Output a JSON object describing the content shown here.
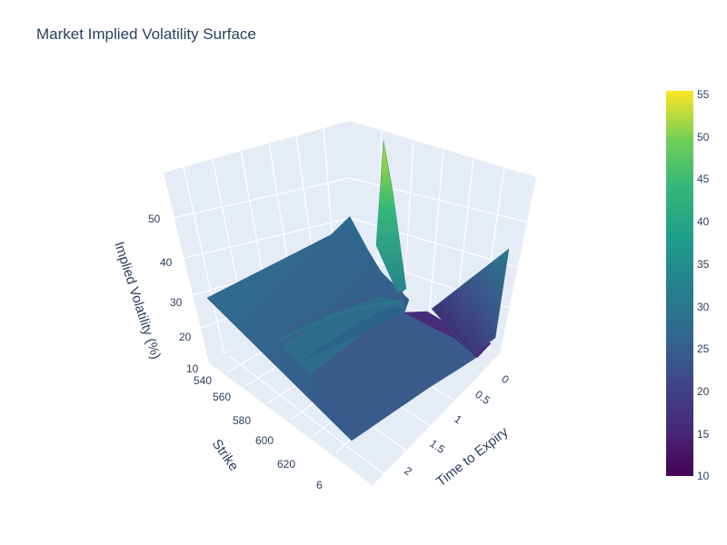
{
  "chart_data": {
    "type": "surface",
    "title": "Market Implied Volatility Surface",
    "x_axis": {
      "label": "Strike",
      "tick_labels": [
        "540",
        "560",
        "580",
        "600",
        "620",
        "6"
      ],
      "range": [
        535,
        650
      ]
    },
    "y_axis": {
      "label": "Time to Expiry",
      "tick_labels": [
        "0",
        "0.5",
        "1",
        "1.5",
        "2"
      ],
      "range": [
        0,
        2.2
      ]
    },
    "z_axis": {
      "label": "Implied Volatility (%)",
      "tick_labels": [
        "10",
        "20",
        "30",
        "40",
        "50"
      ],
      "range": [
        8,
        56
      ]
    },
    "colorbar": {
      "colorscale": "Viridis",
      "min": 10,
      "max": 55,
      "tick_labels": [
        "10",
        "15",
        "20",
        "25",
        "30",
        "35",
        "40",
        "45",
        "50",
        "55"
      ]
    },
    "surface_points": [
      {
        "strike": 540,
        "expiry": 2.2,
        "iv": 28
      },
      {
        "strike": 640,
        "expiry": 2.2,
        "iv": 22
      },
      {
        "strike": 640,
        "expiry": 0.1,
        "iv": 18
      },
      {
        "strike": 545,
        "expiry": 0.1,
        "iv": 28
      },
      {
        "strike": 540,
        "expiry": 0.05,
        "iv": 55
      },
      {
        "strike": 640,
        "expiry": 0.0,
        "iv": 38
      },
      {
        "strike": 600,
        "expiry": 0.02,
        "iv": 12
      }
    ],
    "grid": true
  }
}
